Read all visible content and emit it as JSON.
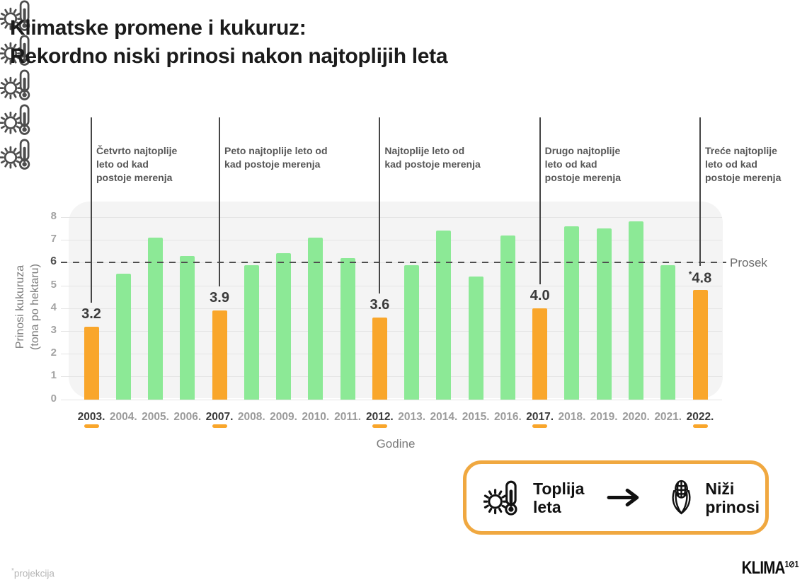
{
  "title": {
    "line1": "Klimatske promene i kukuruz:",
    "line2": "Rekordno niski prinosi nakon najtoplijih leta"
  },
  "colors": {
    "highlight_orange": "#f9a62b",
    "bar_green": "#8ce996",
    "plot_background": "#f4f4f4",
    "annotation_gray": "#575757",
    "legend_border_orange": "#f0a840"
  },
  "annotations": [
    {
      "year": "2003.",
      "text": "Četvrto najtoplije\nleto od kad\npostoje merenja"
    },
    {
      "year": "2007.",
      "text": "Peto najtoplije leto od\nkad postoje merenja"
    },
    {
      "year": "2012.",
      "text": "Najtoplije leto od\nkad postoje merenja"
    },
    {
      "year": "2017.",
      "text": "Drugo najtoplije\nleto od kad\npostoje merenja"
    },
    {
      "year": "2022.",
      "text": "Treće najtoplije\nleto od kad\npostoje merenja"
    }
  ],
  "chart_data": {
    "type": "bar",
    "categories": [
      "2003.",
      "2004.",
      "2005.",
      "2006.",
      "2007.",
      "2008.",
      "2009.",
      "2010.",
      "2011.",
      "2012.",
      "2013.",
      "2014.",
      "2015.",
      "2016.",
      "2017.",
      "2018.",
      "2019.",
      "2020.",
      "2021.",
      "2022."
    ],
    "values": [
      3.2,
      5.5,
      7.1,
      6.3,
      3.9,
      5.9,
      6.4,
      7.1,
      6.2,
      3.6,
      5.9,
      7.4,
      5.4,
      7.2,
      4.0,
      7.6,
      7.5,
      7.8,
      5.9,
      4.8
    ],
    "highlighted_categories": [
      "2003.",
      "2007.",
      "2012.",
      "2017.",
      "2022."
    ],
    "highlighted_value_labels": [
      "3.2",
      "3.9",
      "3.6",
      "4.0",
      "4.8"
    ],
    "projection_category": "2022.",
    "xlabel": "Godine",
    "ylabel": "Prinosi kukuruza\n(tona po hektaru)",
    "yticks": [
      0,
      1,
      2,
      3,
      4,
      5,
      6,
      7,
      8
    ],
    "ylim": [
      0,
      8
    ],
    "average_line": {
      "value": 6,
      "label": "Prosek"
    },
    "bar_color": "#8ce996",
    "highlight_color": "#f9a62b",
    "grid": true,
    "legend_position": "none"
  },
  "legend": {
    "warm_label": "Toplija\nleta",
    "yield_label": "Niži\nprinosi"
  },
  "footnote": {
    "marker": "*",
    "text": "projekcija"
  },
  "logo": {
    "main": "KLIMA",
    "sup": "1⊘1"
  }
}
